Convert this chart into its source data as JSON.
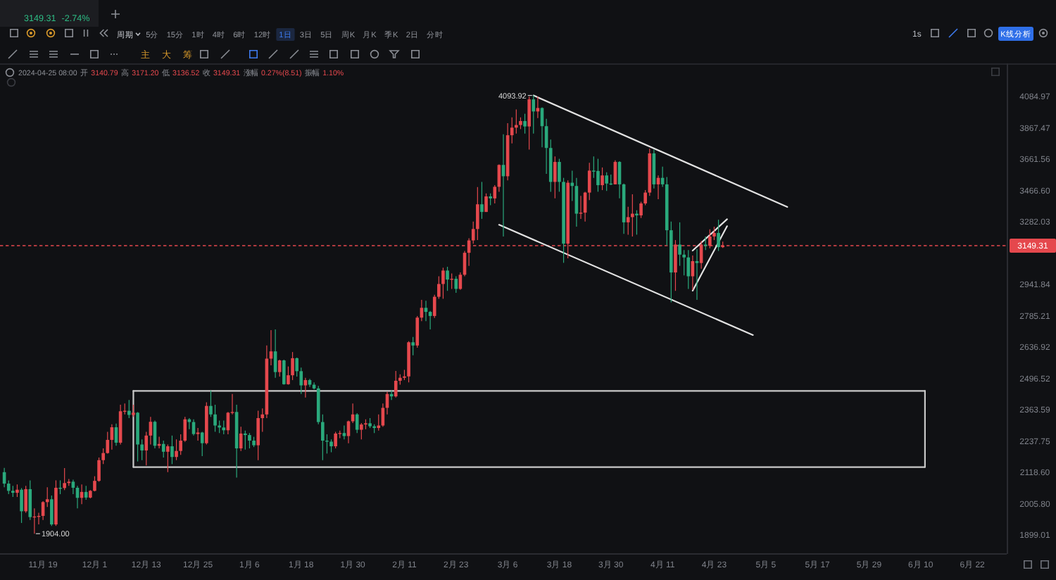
{
  "chart_data": {
    "type": "candlestick",
    "log": "y",
    "xlim": [
      "2023-11-09",
      "2024-06-30"
    ],
    "xticks": [
      {
        "value": "2023-11-19",
        "label": "11月 19"
      },
      {
        "value": "2023-12-01",
        "label": "12月 1"
      },
      {
        "value": "2023-12-13",
        "label": "12月 13"
      },
      {
        "value": "2023-12-25",
        "label": "12月 25"
      },
      {
        "value": "2024-01-06",
        "label": "1月 6"
      },
      {
        "value": "2024-01-18",
        "label": "1月 18"
      },
      {
        "value": "2024-01-30",
        "label": "1月 30"
      },
      {
        "value": "2024-02-11",
        "label": "2月 11"
      },
      {
        "value": "2024-02-23",
        "label": "2月 23"
      },
      {
        "value": "2024-03-06",
        "label": "3月 6"
      },
      {
        "value": "2024-03-18",
        "label": "3月 18"
      },
      {
        "value": "2024-03-30",
        "label": "3月 30"
      },
      {
        "value": "2024-04-11",
        "label": "4月 11"
      },
      {
        "value": "2024-04-23",
        "label": "4月 23"
      },
      {
        "value": "2024-05-05",
        "label": "5月 5"
      },
      {
        "value": "2024-05-17",
        "label": "5月 17"
      },
      {
        "value": "2024-05-29",
        "label": "5月 29"
      },
      {
        "value": "2024-06-10",
        "label": "6月 10"
      },
      {
        "value": "2024-06-22",
        "label": "6月 22"
      }
    ],
    "ylim": [
      1840,
      4330
    ],
    "yticks": [
      4084.97,
      3867.47,
      3661.56,
      {
        "value": 3466.6,
        "label": "3466.60"
      },
      3282.03,
      2941.84,
      2785.21,
      2636.92,
      2496.52,
      2363.59,
      2237.75,
      {
        "value": 2118.6,
        "label": "2118.60"
      },
      {
        "value": 2005.8,
        "label": "2005.80"
      },
      1899.01
    ],
    "ref_lines": [
      {
        "axis": "y",
        "value": 3149.31,
        "label": "3149.31",
        "color": "#e5484d",
        "line_style": "dashed"
      }
    ],
    "x": [
      "2023-11-10",
      "2023-11-11",
      "2023-11-12",
      "2023-11-13",
      "2023-11-14",
      "2023-11-15",
      "2023-11-16",
      "2023-11-17",
      "2023-11-18",
      "2023-11-19",
      "2023-11-20",
      "2023-11-21",
      "2023-11-22",
      "2023-11-23",
      "2023-11-24",
      "2023-11-25",
      "2023-11-26",
      "2023-11-27",
      "2023-11-28",
      "2023-11-29",
      "2023-11-30",
      "2023-12-01",
      "2023-12-02",
      "2023-12-03",
      "2023-12-04",
      "2023-12-05",
      "2023-12-06",
      "2023-12-07",
      "2023-12-08",
      "2023-12-09",
      "2023-12-10",
      "2023-12-11",
      "2023-12-12",
      "2023-12-13",
      "2023-12-14",
      "2023-12-15",
      "2023-12-16",
      "2023-12-17",
      "2023-12-18",
      "2023-12-19",
      "2023-12-20",
      "2023-12-21",
      "2023-12-22",
      "2023-12-23",
      "2023-12-24",
      "2023-12-25",
      "2023-12-26",
      "2023-12-27",
      "2023-12-28",
      "2023-12-29",
      "2023-12-30",
      "2023-12-31",
      "2024-01-01",
      "2024-01-02",
      "2024-01-03",
      "2024-01-04",
      "2024-01-05",
      "2024-01-06",
      "2024-01-07",
      "2024-01-08",
      "2024-01-09",
      "2024-01-10",
      "2024-01-11",
      "2024-01-12",
      "2024-01-13",
      "2024-01-14",
      "2024-01-15",
      "2024-01-16",
      "2024-01-17",
      "2024-01-18",
      "2024-01-19",
      "2024-01-20",
      "2024-01-21",
      "2024-01-22",
      "2024-01-23",
      "2024-01-24",
      "2024-01-25",
      "2024-01-26",
      "2024-01-27",
      "2024-01-28",
      "2024-01-29",
      "2024-01-30",
      "2024-01-31",
      "2024-02-01",
      "2024-02-02",
      "2024-02-03",
      "2024-02-04",
      "2024-02-05",
      "2024-02-06",
      "2024-02-07",
      "2024-02-08",
      "2024-02-09",
      "2024-02-10",
      "2024-02-11",
      "2024-02-12",
      "2024-02-13",
      "2024-02-14",
      "2024-02-15",
      "2024-02-16",
      "2024-02-17",
      "2024-02-18",
      "2024-02-19",
      "2024-02-20",
      "2024-02-21",
      "2024-02-22",
      "2024-02-23",
      "2024-02-24",
      "2024-02-25",
      "2024-02-26",
      "2024-02-27",
      "2024-02-28",
      "2024-02-29",
      "2024-03-01",
      "2024-03-02",
      "2024-03-03",
      "2024-03-04",
      "2024-03-05",
      "2024-03-06",
      "2024-03-07",
      "2024-03-08",
      "2024-03-09",
      "2024-03-10",
      "2024-03-11",
      "2024-03-12",
      "2024-03-13",
      "2024-03-14",
      "2024-03-15",
      "2024-03-16",
      "2024-03-17",
      "2024-03-18",
      "2024-03-19",
      "2024-03-20",
      "2024-03-21",
      "2024-03-22",
      "2024-03-23",
      "2024-03-24",
      "2024-03-25",
      "2024-03-26",
      "2024-03-27",
      "2024-03-28",
      "2024-03-29",
      "2024-03-30",
      "2024-03-31",
      "2024-04-01",
      "2024-04-02",
      "2024-04-03",
      "2024-04-04",
      "2024-04-05",
      "2024-04-06",
      "2024-04-07",
      "2024-04-08",
      "2024-04-09",
      "2024-04-10",
      "2024-04-11",
      "2024-04-12",
      "2024-04-13",
      "2024-04-14",
      "2024-04-15",
      "2024-04-16",
      "2024-04-17",
      "2024-04-18",
      "2024-04-19",
      "2024-04-20",
      "2024-04-21",
      "2024-04-22",
      "2024-04-23",
      "2024-04-24",
      "2024-04-25"
    ],
    "ohlc": [
      [
        2120,
        2136,
        2065,
        2078
      ],
      [
        2078,
        2090,
        2040,
        2052
      ],
      [
        2052,
        2070,
        2030,
        2045
      ],
      [
        2045,
        2075,
        2030,
        2056
      ],
      [
        2056,
        2062,
        1940,
        1980
      ],
      [
        1980,
        2070,
        1975,
        2058
      ],
      [
        2058,
        2090,
        1950,
        1960
      ],
      [
        1960,
        1990,
        1904,
        1962
      ],
      [
        1962,
        1975,
        1935,
        1964
      ],
      [
        1964,
        2015,
        1950,
        2012
      ],
      [
        2012,
        2065,
        1995,
        2022
      ],
      [
        2022,
        2035,
        1930,
        1935
      ],
      [
        1935,
        2090,
        1930,
        2063
      ],
      [
        2063,
        2090,
        2040,
        2062
      ],
      [
        2062,
        2135,
        2055,
        2080
      ],
      [
        2080,
        2095,
        2070,
        2085
      ],
      [
        2085,
        2092,
        2040,
        2063
      ],
      [
        2063,
        2070,
        1990,
        2027
      ],
      [
        2027,
        2075,
        2005,
        2048
      ],
      [
        2048,
        2070,
        2020,
        2028
      ],
      [
        2028,
        2055,
        2025,
        2052
      ],
      [
        2052,
        2105,
        2050,
        2088
      ],
      [
        2088,
        2175,
        2085,
        2165
      ],
      [
        2165,
        2210,
        2150,
        2192
      ],
      [
        2192,
        2275,
        2190,
        2243
      ],
      [
        2243,
        2305,
        2205,
        2293
      ],
      [
        2293,
        2308,
        2220,
        2232
      ],
      [
        2232,
        2385,
        2225,
        2358
      ],
      [
        2358,
        2390,
        2345,
        2360
      ],
      [
        2360,
        2405,
        2330,
        2343
      ],
      [
        2343,
        2385,
        2335,
        2352
      ],
      [
        2352,
        2355,
        2160,
        2225
      ],
      [
        2225,
        2245,
        2165,
        2202
      ],
      [
        2202,
        2275,
        2145,
        2260
      ],
      [
        2260,
        2335,
        2225,
        2315
      ],
      [
        2315,
        2320,
        2210,
        2220
      ],
      [
        2220,
        2255,
        2210,
        2227
      ],
      [
        2227,
        2240,
        2175,
        2197
      ],
      [
        2197,
        2225,
        2120,
        2218
      ],
      [
        2218,
        2260,
        2150,
        2177
      ],
      [
        2177,
        2245,
        2165,
        2200
      ],
      [
        2200,
        2265,
        2185,
        2240
      ],
      [
        2240,
        2335,
        2235,
        2325
      ],
      [
        2325,
        2330,
        2285,
        2314
      ],
      [
        2314,
        2325,
        2260,
        2266
      ],
      [
        2266,
        2290,
        2240,
        2272
      ],
      [
        2272,
        2275,
        2180,
        2230
      ],
      [
        2230,
        2395,
        2225,
        2380
      ],
      [
        2380,
        2445,
        2335,
        2345
      ],
      [
        2345,
        2385,
        2275,
        2300
      ],
      [
        2300,
        2320,
        2270,
        2292
      ],
      [
        2292,
        2320,
        2265,
        2281
      ],
      [
        2281,
        2355,
        2265,
        2352
      ],
      [
        2352,
        2430,
        2345,
        2355
      ],
      [
        2355,
        2385,
        2100,
        2210
      ],
      [
        2210,
        2295,
        2200,
        2268
      ],
      [
        2268,
        2280,
        2205,
        2262
      ],
      [
        2262,
        2270,
        2210,
        2240
      ],
      [
        2240,
        2255,
        2215,
        2222
      ],
      [
        2222,
        2360,
        2165,
        2330
      ],
      [
        2330,
        2370,
        2275,
        2345
      ],
      [
        2345,
        2645,
        2330,
        2585
      ],
      [
        2585,
        2717,
        2555,
        2618
      ],
      [
        2618,
        2720,
        2500,
        2525
      ],
      [
        2525,
        2580,
        2505,
        2577
      ],
      [
        2577,
        2580,
        2470,
        2472
      ],
      [
        2472,
        2550,
        2470,
        2511
      ],
      [
        2511,
        2615,
        2490,
        2587
      ],
      [
        2587,
        2590,
        2505,
        2529
      ],
      [
        2529,
        2545,
        2430,
        2467
      ],
      [
        2467,
        2500,
        2415,
        2490
      ],
      [
        2490,
        2495,
        2460,
        2470
      ],
      [
        2470,
        2480,
        2450,
        2454
      ],
      [
        2454,
        2465,
        2305,
        2314
      ],
      [
        2314,
        2345,
        2165,
        2240
      ],
      [
        2240,
        2265,
        2190,
        2236
      ],
      [
        2236,
        2245,
        2195,
        2218
      ],
      [
        2218,
        2275,
        2210,
        2268
      ],
      [
        2268,
        2280,
        2250,
        2270
      ],
      [
        2270,
        2300,
        2245,
        2258
      ],
      [
        2258,
        2320,
        2230,
        2317
      ],
      [
        2317,
        2390,
        2310,
        2345
      ],
      [
        2345,
        2350,
        2270,
        2283
      ],
      [
        2283,
        2310,
        2245,
        2304
      ],
      [
        2304,
        2325,
        2285,
        2309
      ],
      [
        2309,
        2330,
        2290,
        2297
      ],
      [
        2297,
        2305,
        2270,
        2290
      ],
      [
        2290,
        2345,
        2280,
        2300
      ],
      [
        2300,
        2390,
        2295,
        2372
      ],
      [
        2372,
        2440,
        2345,
        2430
      ],
      [
        2430,
        2445,
        2405,
        2420
      ],
      [
        2420,
        2530,
        2415,
        2487
      ],
      [
        2487,
        2515,
        2470,
        2500
      ],
      [
        2500,
        2535,
        2490,
        2506
      ],
      [
        2506,
        2665,
        2480,
        2660
      ],
      [
        2660,
        2685,
        2600,
        2645
      ],
      [
        2645,
        2785,
        2635,
        2777
      ],
      [
        2777,
        2865,
        2760,
        2825
      ],
      [
        2825,
        2860,
        2760,
        2805
      ],
      [
        2805,
        2810,
        2720,
        2785
      ],
      [
        2785,
        2890,
        2775,
        2880
      ],
      [
        2880,
        2985,
        2870,
        2945
      ],
      [
        2945,
        3030,
        2870,
        3015
      ],
      [
        3015,
        3035,
        2910,
        2968
      ],
      [
        2968,
        3000,
        2920,
        2972
      ],
      [
        2972,
        2985,
        2900,
        2920
      ],
      [
        2920,
        3005,
        2915,
        2993
      ],
      [
        2993,
        3120,
        2985,
        3110
      ],
      [
        3110,
        3190,
        3040,
        3178
      ],
      [
        3178,
        3285,
        3160,
        3242
      ],
      [
        3242,
        3488,
        3180,
        3385
      ],
      [
        3385,
        3520,
        3300,
        3340
      ],
      [
        3340,
        3450,
        3340,
        3432
      ],
      [
        3432,
        3450,
        3380,
        3420
      ],
      [
        3420,
        3500,
        3390,
        3490
      ],
      [
        3490,
        3630,
        3460,
        3626
      ],
      [
        3626,
        3825,
        3200,
        3555
      ],
      [
        3555,
        3900,
        3530,
        3819
      ],
      [
        3819,
        3940,
        3765,
        3870
      ],
      [
        3870,
        3995,
        3830,
        3888
      ],
      [
        3888,
        3940,
        3860,
        3915
      ],
      [
        3915,
        3965,
        3830,
        3878
      ],
      [
        3878,
        4085,
        3725,
        4066
      ],
      [
        4066,
        4093.92,
        3830,
        3981
      ],
      [
        3981,
        4085,
        3935,
        4005
      ],
      [
        4005,
        4010,
        3740,
        3880
      ],
      [
        3880,
        3930,
        3570,
        3735
      ],
      [
        3735,
        3790,
        3460,
        3520
      ],
      [
        3520,
        3680,
        3420,
        3645
      ],
      [
        3645,
        3665,
        3460,
        3520
      ],
      [
        3520,
        3545,
        3056,
        3160
      ],
      [
        3160,
        3530,
        3080,
        3515
      ],
      [
        3515,
        3590,
        3405,
        3495
      ],
      [
        3495,
        3545,
        3255,
        3330
      ],
      [
        3330,
        3435,
        3300,
        3336
      ],
      [
        3336,
        3460,
        3285,
        3455
      ],
      [
        3455,
        3640,
        3410,
        3590
      ],
      [
        3590,
        3680,
        3545,
        3588
      ],
      [
        3588,
        3665,
        3460,
        3500
      ],
      [
        3500,
        3610,
        3470,
        3560
      ],
      [
        3560,
        3580,
        3465,
        3510
      ],
      [
        3510,
        3565,
        3500,
        3505
      ],
      [
        3505,
        3655,
        3505,
        3645
      ],
      [
        3645,
        3650,
        3420,
        3505
      ],
      [
        3505,
        3510,
        3215,
        3280
      ],
      [
        3280,
        3370,
        3210,
        3310
      ],
      [
        3310,
        3445,
        3200,
        3330
      ],
      [
        3330,
        3350,
        3210,
        3320
      ],
      [
        3320,
        3400,
        3305,
        3390
      ],
      [
        3390,
        3470,
        3380,
        3455
      ],
      [
        3455,
        3730,
        3435,
        3700
      ],
      [
        3700,
        3725,
        3480,
        3505
      ],
      [
        3505,
        3560,
        3415,
        3545
      ],
      [
        3545,
        3615,
        3490,
        3505
      ],
      [
        3505,
        3550,
        3150,
        3235
      ],
      [
        3235,
        3285,
        2852,
        3005
      ],
      [
        3005,
        3180,
        2910,
        3155
      ],
      [
        3155,
        3280,
        3040,
        3100
      ],
      [
        3100,
        3125,
        2990,
        3085
      ],
      [
        3085,
        3125,
        2920,
        2985
      ],
      [
        2985,
        3095,
        2915,
        3065
      ],
      [
        3065,
        3130,
        2865,
        3055
      ],
      [
        3055,
        3175,
        3025,
        3155
      ],
      [
        3155,
        3200,
        3125,
        3148
      ],
      [
        3148,
        3240,
        3135,
        3200
      ],
      [
        3200,
        3255,
        3180,
        3220
      ],
      [
        3220,
        3295,
        3120,
        3140.79
      ],
      [
        3140.79,
        3171.2,
        3136.52,
        3149.31
      ]
    ],
    "colors": [
      "#2aa97c",
      "#2aa97c",
      "#2aa97c",
      "#e5484d",
      "#2aa97c",
      "#e5484d",
      "#2aa97c",
      "#e5484d",
      "#e5484d",
      "#e5484d",
      "#e5484d",
      "#2aa97c",
      "#e5484d",
      "#2aa97c",
      "#e5484d",
      "#e5484d",
      "#2aa97c",
      "#2aa97c",
      "#e5484d",
      "#2aa97c",
      "#e5484d",
      "#e5484d",
      "#e5484d",
      "#e5484d",
      "#e5484d",
      "#e5484d",
      "#2aa97c",
      "#e5484d",
      "#e5484d",
      "#2aa97c",
      "#e5484d",
      "#2aa97c",
      "#2aa97c",
      "#e5484d",
      "#e5484d",
      "#2aa97c",
      "#e5484d",
      "#2aa97c",
      "#e5484d",
      "#2aa97c",
      "#e5484d",
      "#e5484d",
      "#e5484d",
      "#2aa97c",
      "#2aa97c",
      "#e5484d",
      "#2aa97c",
      "#e5484d",
      "#2aa97c",
      "#2aa97c",
      "#2aa97c",
      "#2aa97c",
      "#e5484d",
      "#e5484d",
      "#2aa97c",
      "#e5484d",
      "#2aa97c",
      "#2aa97c",
      "#2aa97c",
      "#e5484d",
      "#e5484d",
      "#e5484d",
      "#e5484d",
      "#2aa97c",
      "#e5484d",
      "#2aa97c",
      "#e5484d",
      "#e5484d",
      "#2aa97c",
      "#2aa97c",
      "#e5484d",
      "#2aa97c",
      "#2aa97c",
      "#2aa97c",
      "#2aa97c",
      "#2aa97c",
      "#2aa97c",
      "#e5484d",
      "#e5484d",
      "#2aa97c",
      "#e5484d",
      "#e5484d",
      "#2aa97c",
      "#e5484d",
      "#e5484d",
      "#2aa97c",
      "#2aa97c",
      "#e5484d",
      "#e5484d",
      "#e5484d",
      "#2aa97c",
      "#e5484d",
      "#e5484d",
      "#e5484d",
      "#e5484d",
      "#2aa97c",
      "#e5484d",
      "#e5484d",
      "#2aa97c",
      "#2aa97c",
      "#e5484d",
      "#e5484d",
      "#e5484d",
      "#2aa97c",
      "#e5484d",
      "#2aa97c",
      "#e5484d",
      "#e5484d",
      "#e5484d",
      "#e5484d",
      "#e5484d",
      "#2aa97c",
      "#e5484d",
      "#2aa97c",
      "#e5484d",
      "#e5484d",
      "#2aa97c",
      "#e5484d",
      "#e5484d",
      "#e5484d",
      "#e5484d",
      "#2aa97c",
      "#e5484d",
      "#2aa97c",
      "#e5484d",
      "#2aa97c",
      "#2aa97c",
      "#2aa97c",
      "#e5484d",
      "#2aa97c",
      "#2aa97c",
      "#e5484d",
      "#2aa97c",
      "#2aa97c",
      "#e5484d",
      "#e5484d",
      "#e5484d",
      "#2aa97c",
      "#2aa97c",
      "#e5484d",
      "#2aa97c",
      "#2aa97c",
      "#e5484d",
      "#2aa97c",
      "#2aa97c",
      "#e5484d",
      "#e5484d",
      "#2aa97c",
      "#e5484d",
      "#e5484d",
      "#e5484d",
      "#2aa97c",
      "#e5484d",
      "#2aa97c",
      "#2aa97c",
      "#2aa97c",
      "#e5484d",
      "#2aa97c",
      "#2aa97c",
      "#2aa97c",
      "#e5484d",
      "#2aa97c",
      "#e5484d",
      "#2aa97c",
      "#e5484d",
      "#e5484d",
      "#2aa97c",
      "#e5484d"
    ],
    "series": [
      {
        "type": "line",
        "x": [
          "2024-03-12",
          "2024-05-10"
        ],
        "values": [
          4094,
          3369
        ],
        "color": "#e2e2e2"
      },
      {
        "type": "line",
        "x": [
          "2024-03-04",
          "2024-05-02"
        ],
        "values": [
          3266,
          2694
        ],
        "color": "#e2e2e2"
      },
      {
        "type": "line",
        "x": [
          "2024-04-18",
          "2024-04-26"
        ],
        "values": [
          2911,
          3258
        ],
        "color": "#e2e2e2"
      },
      {
        "type": "line",
        "x": [
          "2024-04-18",
          "2024-04-26"
        ],
        "values": [
          3122,
          3298
        ],
        "color": "#e2e2e2"
      },
      {
        "type": "line",
        "x": [
          "2023-12-10",
          "2024-06-11"
        ],
        "values": [
          2443,
          2443
        ],
        "color": "#c9c9c9"
      },
      {
        "type": "line",
        "x": [
          "2023-12-10",
          "2024-06-11"
        ],
        "values": [
          2139,
          2139
        ],
        "color": "#c9c9c9"
      },
      {
        "type": "line",
        "x": [
          "2023-12-10",
          "2023-12-10"
        ],
        "values": [
          2139,
          2443
        ],
        "color": "#c9c9c9"
      },
      {
        "type": "line",
        "x": [
          "2024-06-11",
          "2024-06-11"
        ],
        "values": [
          2139,
          2443
        ],
        "color": "#c9c9c9"
      }
    ],
    "annotations": [
      {
        "text": "4093.92",
        "x": "2024-03-12",
        "y": 4093.92
      },
      {
        "text": "1904.00",
        "x": "2023-11-17",
        "y": 1904
      },
      "3149.31",
      "-2.74%",
      "周期",
      "5分",
      "15分",
      "1时",
      "4时",
      "6时",
      "12时",
      "1日",
      "3日",
      "5日",
      "周K",
      "月K",
      "季K",
      "2日",
      "分时",
      "1s",
      "K线分析",
      "主",
      "大",
      "筹",
      "2024-04-25 08:00",
      "开",
      "3140.79",
      "高",
      "3171.20",
      "低",
      "3136.52",
      "收",
      "3149.31",
      "涨幅",
      "0.27%(8.51)",
      "振幅",
      "1.10%"
    ]
  }
}
